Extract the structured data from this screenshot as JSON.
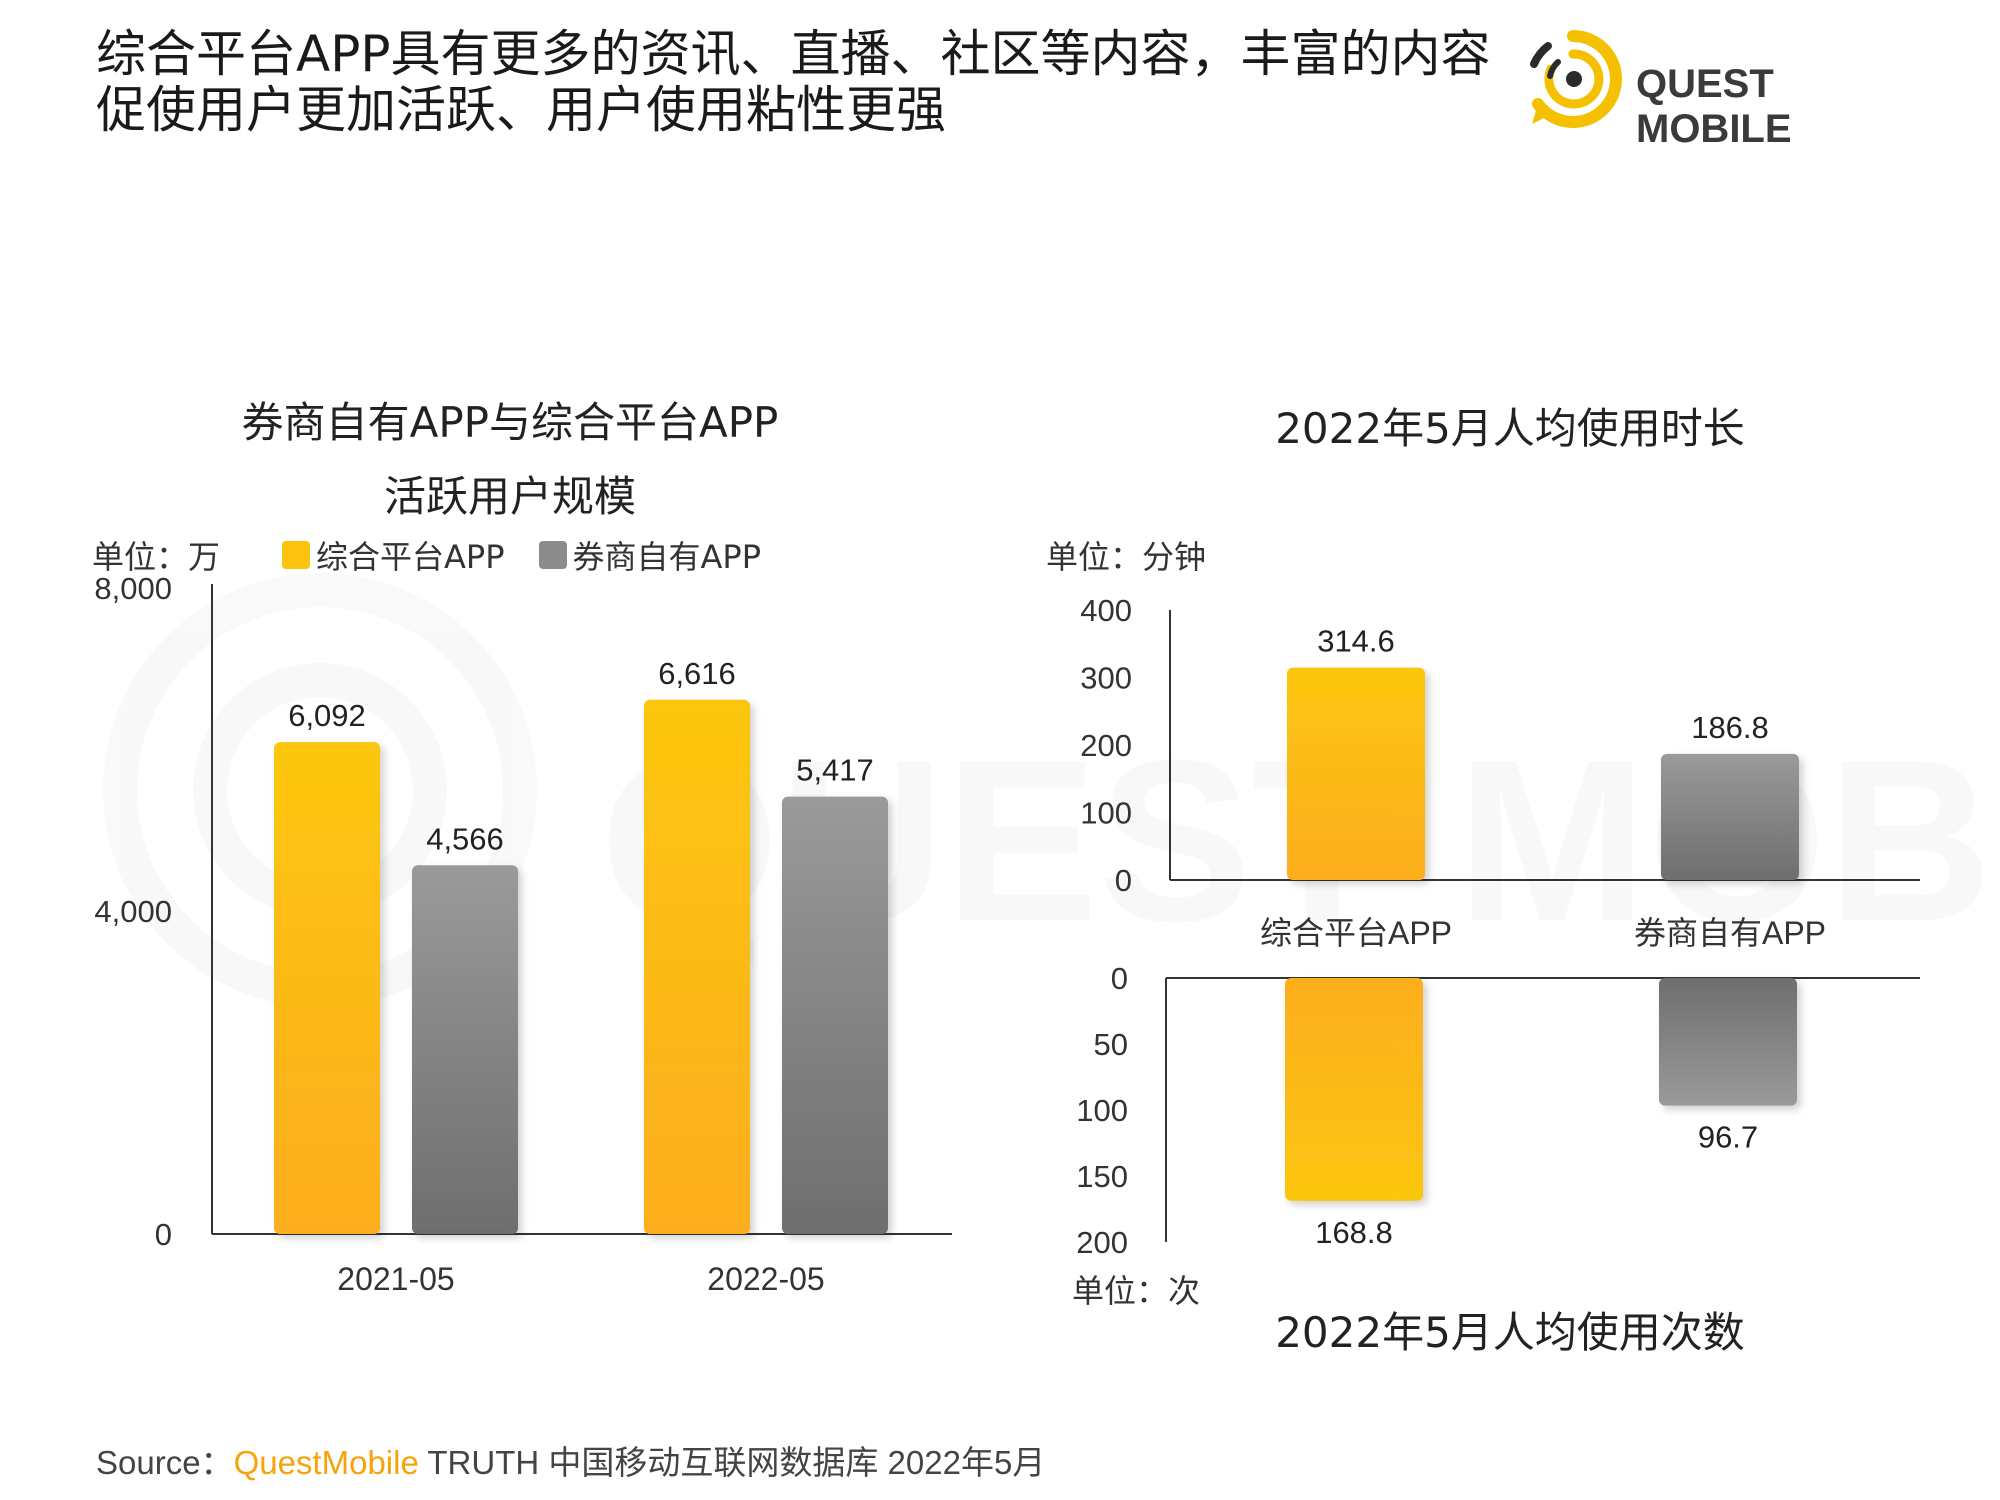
{
  "header": {
    "headline": "综合平台APP具有更多的资讯、直播、社区等内容，丰富的内容促使用户更加活跃、用户使用粘性更强",
    "logo_text": "QUEST MOBILE",
    "watermark_text": "QUEST MOBILE"
  },
  "legend": {
    "items": [
      {
        "label": "综合平台APP",
        "color": "#fcc20e"
      },
      {
        "label": "券商自有APP",
        "color": "#8c8c8c"
      }
    ]
  },
  "colors": {
    "yellow_top": "#fcc60f",
    "yellow_bottom": "#fdae1f",
    "gray_top": "#9a9a9a",
    "gray_bottom": "#6e6e6e",
    "axis": "#333333",
    "source_brand": "#f5a40c"
  },
  "charts": {
    "left": {
      "title_line1": "券商自有APP与综合平台APP",
      "title_line2": "活跃用户规模",
      "unit": "单位：万"
    },
    "top_right": {
      "title": "2022年5月人均使用时长",
      "unit": "单位：分钟"
    },
    "bottom_right": {
      "title": "2022年5月人均使用次数",
      "unit": "单位：次"
    }
  },
  "chart_data": [
    {
      "type": "bar",
      "title": "券商自有APP与综合平台APP活跃用户规模",
      "categories": [
        "2021-05",
        "2022-05"
      ],
      "series": [
        {
          "name": "综合平台APP",
          "values": [
            6092,
            6616
          ],
          "labels": [
            "6,092",
            "6,616"
          ]
        },
        {
          "name": "券商自有APP",
          "values": [
            4566,
            5417
          ],
          "labels": [
            "4,566",
            "5,417"
          ]
        }
      ],
      "ylim": [
        0,
        8000
      ],
      "yticks": [
        "0",
        "4,000",
        "8,000"
      ],
      "ylabel": "单位：万",
      "legend": "top-left"
    },
    {
      "type": "bar",
      "title": "2022年5月人均使用时长",
      "categories": [
        "综合平台APP",
        "券商自有APP"
      ],
      "values": [
        314.6,
        186.8
      ],
      "labels": [
        "314.6",
        "186.8"
      ],
      "ylim": [
        0,
        400
      ],
      "yticks": [
        "0",
        "100",
        "200",
        "300",
        "400"
      ],
      "ylabel": "单位：分钟"
    },
    {
      "type": "bar",
      "title": "2022年5月人均使用次数",
      "categories": [
        "综合平台APP",
        "券商自有APP"
      ],
      "values": [
        168.8,
        96.7
      ],
      "labels": [
        "168.8",
        "96.7"
      ],
      "ylim": [
        0,
        200
      ],
      "yticks": [
        "0",
        "50",
        "100",
        "150",
        "200"
      ],
      "ylabel": "单位：次",
      "inverted": true
    }
  ],
  "source": {
    "prefix": "Source：",
    "brand": "QuestMobile",
    "rest": " TRUTH 中国移动互联网数据库 2022年5月"
  }
}
